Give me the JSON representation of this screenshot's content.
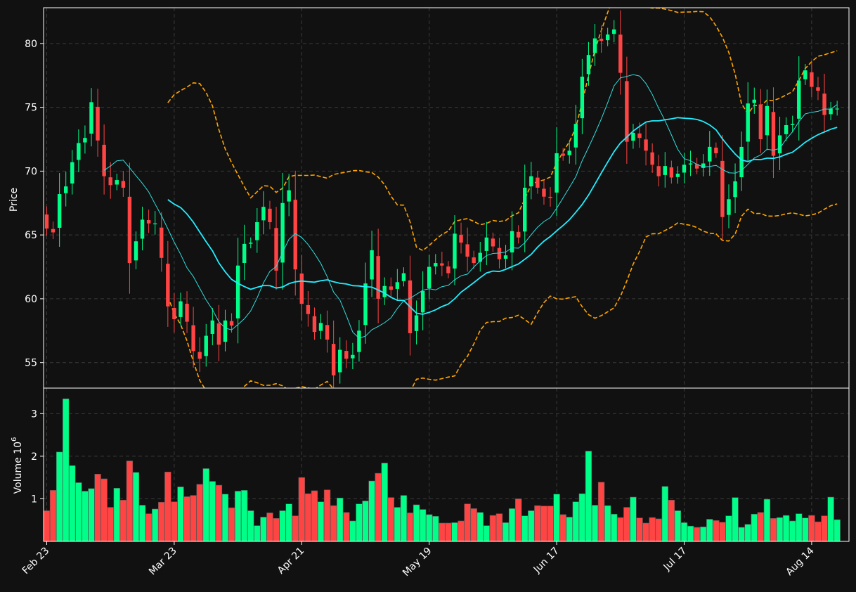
{
  "chart_data": {
    "type": "candlestick",
    "style": "dark",
    "colors": {
      "background": "#111111",
      "up": "#00ff88",
      "down": "#ff4444",
      "ma_short": "#33dddd",
      "ma_long": "#22eeff",
      "bollinger": "#ffa500",
      "grid": "#3a3a3a"
    },
    "price_panel": {
      "ylabel": "Price",
      "yticks": [
        55,
        60,
        65,
        70,
        75,
        80
      ],
      "ylim": [
        53.0,
        82.8
      ],
      "legend": "none"
    },
    "volume_panel": {
      "ylabel": "Volume",
      "ylabel_exponent": "6",
      "yticks": [
        1,
        2,
        3
      ],
      "ylim": [
        0,
        3.6
      ]
    },
    "x_ticks": [
      {
        "label": "Feb 23",
        "index": 0
      },
      {
        "label": "Mar 23",
        "index": 20
      },
      {
        "label": "Apr 21",
        "index": 40
      },
      {
        "label": "May 19",
        "index": 60
      },
      {
        "label": "Jun 17",
        "index": 80
      },
      {
        "label": "Jul 17",
        "index": 100
      },
      {
        "label": "Aug 14",
        "index": 120
      }
    ],
    "closes": [
      65.5,
      65.2,
      68.2,
      68.8,
      70.7,
      72.2,
      72.6,
      75.4,
      72.4,
      69.6,
      68.9,
      69.3,
      68.7,
      62.8,
      64.5,
      66.2,
      65.9,
      65.9,
      63.2,
      59.4,
      58.4,
      59.8,
      58.2,
      55.9,
      55.3,
      57.1,
      58.3,
      56.4,
      58.3,
      57.9,
      62.6,
      64.3,
      64.4,
      66.0,
      67.2,
      66.0,
      62.2,
      67.5,
      68.5,
      62.3,
      59.6,
      58.8,
      57.4,
      58.1,
      56.8,
      54.0,
      56.0,
      55.3,
      55.6,
      57.5,
      61.2,
      63.8,
      60.0,
      61.0,
      60.7,
      61.3,
      62.0,
      57.3,
      58.7,
      60.6,
      62.5,
      62.8,
      62.6,
      62.0,
      65.1,
      64.4,
      63.3,
      62.8,
      63.6,
      64.8,
      64.1,
      63.1,
      63.4,
      65.3,
      64.8,
      68.7,
      69.6,
      68.7,
      68.0,
      67.9,
      71.4,
      71.2,
      71.6,
      73.7,
      77.4,
      79.1,
      80.4,
      80.2,
      80.7,
      81.1,
      77.7,
      72.3,
      73.0,
      72.6,
      71.6,
      70.5,
      69.6,
      70.4,
      69.5,
      69.8,
      70.5,
      70.6,
      70.2,
      70.6,
      71.9,
      71.4,
      66.4,
      67.8,
      69.2,
      71.9,
      75.3,
      75.6,
      72.5,
      75.1,
      71.2,
      72.8,
      73.6,
      73.7,
      77.1,
      77.9,
      76.6,
      76.3,
      74.4,
      74.9,
      74.9
    ],
    "volumes_millions": [
      0.72,
      1.2,
      2.1,
      3.35,
      1.78,
      1.38,
      1.18,
      1.24,
      1.58,
      1.47,
      0.8,
      1.25,
      0.97,
      1.89,
      1.62,
      0.85,
      0.65,
      0.76,
      0.92,
      1.63,
      0.93,
      1.28,
      1.05,
      1.08,
      1.34,
      1.71,
      1.41,
      1.32,
      1.11,
      0.79,
      1.18,
      1.2,
      0.72,
      0.37,
      0.57,
      0.67,
      0.54,
      0.72,
      0.88,
      0.6,
      1.5,
      1.12,
      1.19,
      0.93,
      1.21,
      0.84,
      1.02,
      0.68,
      0.48,
      0.88,
      0.95,
      1.42,
      1.6,
      1.84,
      1.03,
      0.8,
      1.08,
      0.67,
      0.86,
      0.75,
      0.63,
      0.59,
      0.43,
      0.43,
      0.44,
      0.48,
      0.88,
      0.77,
      0.68,
      0.37,
      0.61,
      0.65,
      0.44,
      0.77,
      1.0,
      0.6,
      0.72,
      0.84,
      0.83,
      0.83,
      1.11,
      0.63,
      0.57,
      0.93,
      1.12,
      2.12,
      0.85,
      1.39,
      0.84,
      0.64,
      0.56,
      0.8,
      1.04,
      0.55,
      0.43,
      0.56,
      0.53,
      1.29,
      0.97,
      0.72,
      0.44,
      0.36,
      0.33,
      0.34,
      0.52,
      0.49,
      0.45,
      0.6,
      1.03,
      0.33,
      0.4,
      0.64,
      0.68,
      0.99,
      0.54,
      0.56,
      0.61,
      0.48,
      0.65,
      0.55,
      0.61,
      0.46,
      0.6,
      1.04,
      0.51
    ]
  }
}
